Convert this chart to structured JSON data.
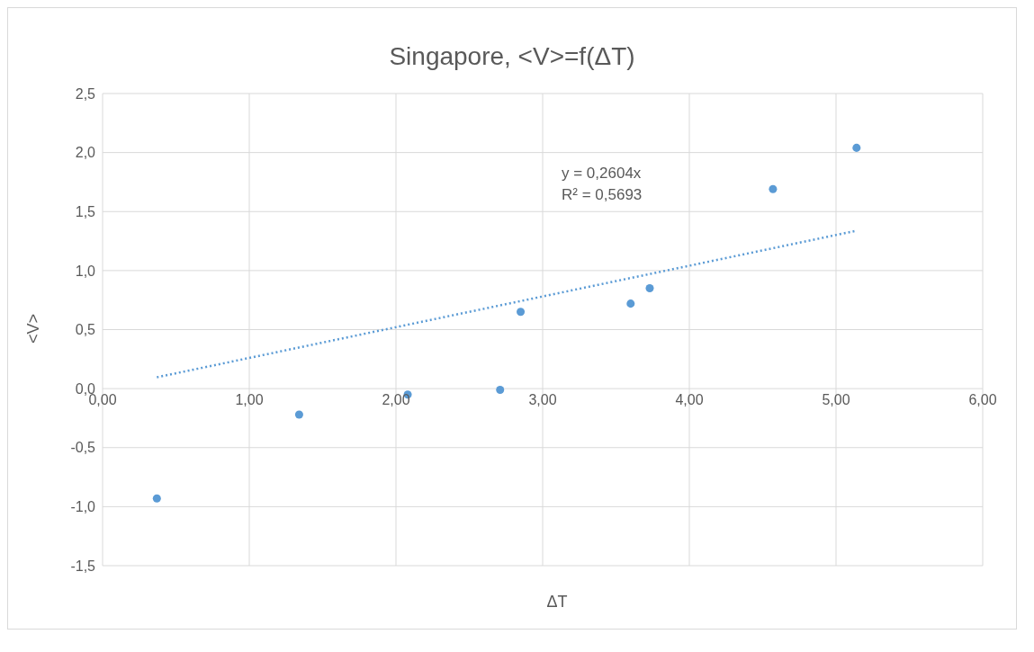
{
  "chart_data": {
    "type": "scatter",
    "title": "Singapore, <V>=f(ΔT)",
    "xlabel": "ΔT",
    "ylabel": "<V>",
    "annotations": [
      "y = 0,2604x",
      "R² = 0,5693"
    ],
    "series": [
      {
        "color": "#5b9bd5",
        "marker": "circle",
        "x": [
          0.37,
          1.34,
          2.08,
          2.71,
          2.85,
          3.6,
          3.73,
          4.57,
          5.14
        ],
        "values": [
          -0.93,
          -0.22,
          -0.05,
          -0.01,
          0.65,
          0.72,
          0.85,
          1.69,
          2.04
        ]
      },
      {
        "type": "line",
        "color": "#5b9bd5",
        "line_style": "dotted",
        "marker": "none",
        "x": [
          0.37,
          5.14
        ],
        "values": [
          0.096,
          1.338
        ]
      }
    ],
    "xlim": [
      0,
      6
    ],
    "xticks": [
      {
        "value": 0,
        "label": "0,00"
      },
      {
        "value": 1,
        "label": "1,00"
      },
      {
        "value": 2,
        "label": "2,00"
      },
      {
        "value": 3,
        "label": "3,00"
      },
      {
        "value": 4,
        "label": "4,00"
      },
      {
        "value": 5,
        "label": "5,00"
      },
      {
        "value": 6,
        "label": "6,00"
      }
    ],
    "ylim": [
      -1.5,
      2.5
    ],
    "yticks": [
      {
        "value": -1.5,
        "label": "-1,5"
      },
      {
        "value": -1,
        "label": "-1,0"
      },
      {
        "value": -0.5,
        "label": "-0,5"
      },
      {
        "value": 0,
        "label": "0,0"
      },
      {
        "value": 0.5,
        "label": "0,5"
      },
      {
        "value": 1,
        "label": "1,0"
      },
      {
        "value": 1.5,
        "label": "1,5"
      },
      {
        "value": 2,
        "label": "2,0"
      },
      {
        "value": 2.5,
        "label": "2,5"
      }
    ],
    "grid": true
  }
}
